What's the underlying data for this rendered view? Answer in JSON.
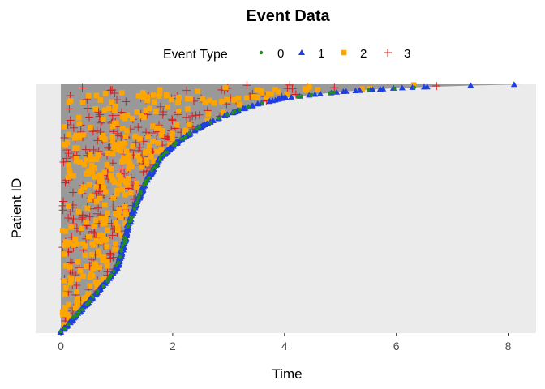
{
  "chart_data": {
    "type": "scatter",
    "title": "Event Data",
    "xlabel": "Time",
    "ylabel": "Patient ID",
    "xlim": [
      -0.45,
      8.5
    ],
    "x_ticks": [
      0,
      2,
      4,
      6,
      8
    ],
    "ylim": [
      0,
      1
    ],
    "y_ticks_shown": false,
    "grid": false,
    "legend": {
      "title": "Event Type",
      "position": "top",
      "entries": [
        {
          "label": "0",
          "color": "#228B22",
          "shape": "circle"
        },
        {
          "label": "1",
          "color": "#1F3FE0",
          "shape": "triangle"
        },
        {
          "label": "2",
          "color": "#FFA500",
          "shape": "square"
        },
        {
          "label": "3",
          "color": "#D62020",
          "shape": "plus"
        }
      ]
    },
    "follow_up_region": {
      "fill": "#999999",
      "x_start": 0
    },
    "frontier": [
      [
        0.0,
        0.0
      ],
      [
        0.2,
        0.05
      ],
      [
        0.4,
        0.1
      ],
      [
        0.6,
        0.15
      ],
      [
        0.8,
        0.2
      ],
      [
        1.0,
        0.26
      ],
      [
        1.1,
        0.33
      ],
      [
        1.2,
        0.43
      ],
      [
        1.35,
        0.52
      ],
      [
        1.55,
        0.62
      ],
      [
        1.8,
        0.71
      ],
      [
        2.1,
        0.77
      ],
      [
        2.5,
        0.83
      ],
      [
        3.0,
        0.88
      ],
      [
        3.5,
        0.92
      ],
      [
        4.0,
        0.945
      ],
      [
        5.0,
        0.97
      ],
      [
        6.0,
        0.985
      ],
      [
        7.0,
        0.993
      ],
      [
        8.25,
        1.0
      ]
    ],
    "points_note": "Event times per patient; patient IDs are sorted by follow-up time. Types 0 and 1 lie on the follow-up end curve; types 2 and 3 lie before it.",
    "series": [
      {
        "name": "0",
        "n": 110
      },
      {
        "name": "1",
        "n": 420
      },
      {
        "name": "2",
        "n": 340
      },
      {
        "name": "3",
        "n": 300
      }
    ]
  }
}
